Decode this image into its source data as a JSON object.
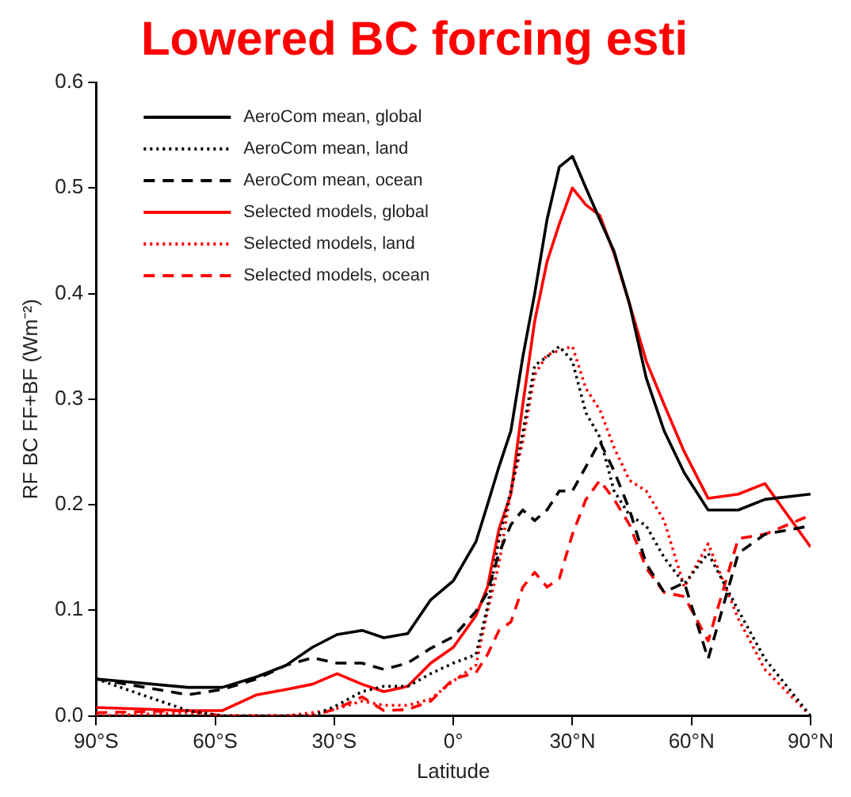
{
  "chart_data": {
    "type": "line",
    "title": "Lowered BC forcing esti",
    "xlabel": "Latitude",
    "ylabel": "RF BC FF+BF (Wm⁻²)",
    "x": [
      -90,
      -66.9,
      -58.2,
      -49.5,
      -42.1,
      -35.5,
      -29.3,
      -23,
      -17.5,
      -11.5,
      -5.7,
      0,
      5.7,
      8.6,
      11.5,
      14.5,
      17.5,
      20.5,
      23.6,
      26.7,
      30,
      33.4,
      36.9,
      40.5,
      44.4,
      48.6,
      53.1,
      58.2,
      64.2,
      71.8,
      78.5,
      90
    ],
    "xlim": [
      -90,
      90
    ],
    "xticks": [
      {
        "value": -90,
        "label": "90°S"
      },
      {
        "value": -60,
        "label": "60°S"
      },
      {
        "value": -30,
        "label": "30°S"
      },
      {
        "value": 0,
        "label": "0°"
      },
      {
        "value": 30,
        "label": "30°N"
      },
      {
        "value": 60,
        "label": "60°N"
      },
      {
        "value": 90,
        "label": "90°N"
      }
    ],
    "ylim": [
      0,
      0.6
    ],
    "yticks": [
      {
        "value": 0,
        "label": "0.0"
      },
      0.1,
      0.2,
      0.3,
      0.4,
      0.5,
      0.6
    ],
    "grid": false,
    "legend": "top left",
    "marker": "none",
    "series": [
      {
        "name": "AeroCom mean, global",
        "color": "#000000",
        "line_style": "solid",
        "values": [
          0.035,
          0.027,
          0.027,
          0.037,
          0.048,
          0.065,
          0.077,
          0.081,
          0.074,
          0.078,
          0.11,
          0.128,
          0.165,
          0.2,
          0.236,
          0.27,
          0.34,
          0.4,
          0.47,
          0.52,
          0.53,
          0.5,
          0.47,
          0.44,
          0.39,
          0.32,
          0.27,
          0.23,
          0.195,
          0.195,
          0.205,
          0.21
        ]
      },
      {
        "name": "AeroCom mean, land",
        "color": "#000000",
        "line_style": "dotted",
        "values": [
          0.035,
          0.005,
          0,
          0,
          0,
          0,
          0.01,
          0.023,
          0.028,
          0.028,
          0.04,
          0.05,
          0.058,
          0.103,
          0.168,
          0.213,
          0.268,
          0.332,
          0.34,
          0.35,
          0.336,
          0.287,
          0.264,
          0.213,
          0.19,
          0.18,
          0.15,
          0.125,
          0.154,
          0.1,
          0.054,
          0
        ]
      },
      {
        "name": "AeroCom mean, ocean",
        "color": "#000000",
        "line_style": "dashed",
        "values": [
          0.035,
          0.02,
          0.025,
          0.035,
          0.048,
          0.055,
          0.05,
          0.05,
          0.044,
          0.05,
          0.064,
          0.075,
          0.099,
          0.117,
          0.154,
          0.181,
          0.195,
          0.185,
          0.195,
          0.213,
          0.213,
          0.236,
          0.26,
          0.232,
          0.195,
          0.144,
          0.117,
          0.126,
          0.054,
          0.154,
          0.172,
          0.18
        ]
      },
      {
        "name": "Selected models, global",
        "color": "#ff0000",
        "line_style": "solid",
        "values": [
          0.008,
          0.005,
          0.005,
          0.02,
          0.025,
          0.03,
          0.04,
          0.03,
          0.023,
          0.028,
          0.05,
          0.065,
          0.095,
          0.122,
          0.177,
          0.21,
          0.295,
          0.374,
          0.43,
          0.466,
          0.5,
          0.484,
          0.474,
          0.438,
          0.39,
          0.336,
          0.295,
          0.25,
          0.206,
          0.21,
          0.22,
          0.16
        ]
      },
      {
        "name": "Selected models, land",
        "color": "#ff0000",
        "line_style": "dotted",
        "values": [
          0,
          0.003,
          0,
          0,
          0,
          0.003,
          0.007,
          0.014,
          0.01,
          0.01,
          0.016,
          0.033,
          0.048,
          0.099,
          0.144,
          0.213,
          0.26,
          0.323,
          0.342,
          0.346,
          0.35,
          0.31,
          0.29,
          0.254,
          0.223,
          0.213,
          0.185,
          0.122,
          0.163,
          0.092,
          0.044,
          0
        ]
      },
      {
        "name": "Selected models, ocean",
        "color": "#ff0000",
        "line_style": "dashed",
        "values": [
          0.003,
          0.005,
          0,
          0,
          0,
          0,
          0.007,
          0.018,
          0.005,
          0.006,
          0.014,
          0.035,
          0.041,
          0.058,
          0.081,
          0.089,
          0.122,
          0.136,
          0.122,
          0.13,
          0.172,
          0.205,
          0.223,
          0.205,
          0.181,
          0.14,
          0.117,
          0.113,
          0.071,
          0.168,
          0.172,
          0.19
        ]
      }
    ]
  }
}
